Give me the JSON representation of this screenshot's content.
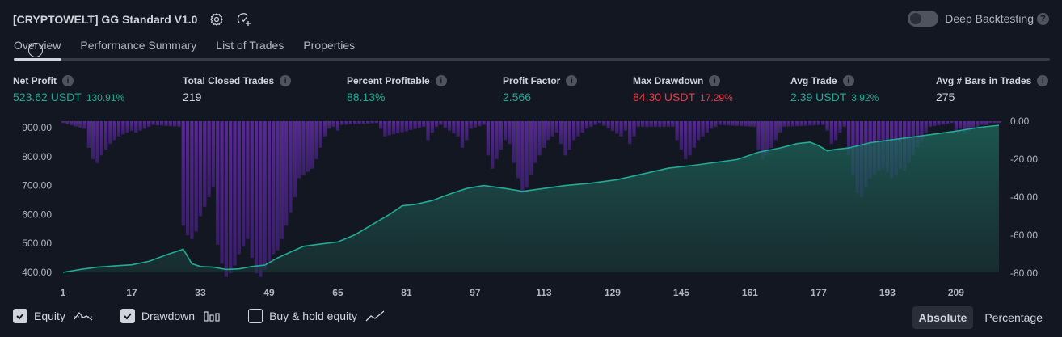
{
  "header": {
    "title": "[CRYPTOWELT] GG Standard V1.0",
    "settings_icon": "gear-icon",
    "source_icon": "add-alert-icon"
  },
  "deep_backtesting": {
    "label": "Deep Backtesting",
    "enabled": false,
    "help": "?"
  },
  "tabs": [
    {
      "label": "Overview",
      "active": true
    },
    {
      "label": "Performance Summary",
      "active": false
    },
    {
      "label": "List of Trades",
      "active": false
    },
    {
      "label": "Properties",
      "active": false
    }
  ],
  "metrics": [
    {
      "label": "Net Profit",
      "value": "523.62 USDT",
      "pct": "130.91%",
      "color": "green"
    },
    {
      "label": "Total Closed Trades",
      "value": "219",
      "pct": "",
      "color": "neutral"
    },
    {
      "label": "Percent Profitable",
      "value": "88.13%",
      "pct": "",
      "color": "green"
    },
    {
      "label": "Profit Factor",
      "value": "2.566",
      "pct": "",
      "color": "green"
    },
    {
      "label": "Max Drawdown",
      "value": "84.30 USDT",
      "pct": "17.29%",
      "color": "red"
    },
    {
      "label": "Avg Trade",
      "value": "2.39 USDT",
      "pct": "3.92%",
      "color": "green"
    },
    {
      "label": "Avg # Bars in Trades",
      "value": "275",
      "pct": "",
      "color": "neutral"
    }
  ],
  "info_glyph": "i",
  "chart_data": {
    "type": "area",
    "x_ticks": [
      "1",
      "17",
      "33",
      "49",
      "65",
      "81",
      "97",
      "113",
      "129",
      "145",
      "161",
      "177",
      "193",
      "209"
    ],
    "left_axis": {
      "ticks": [
        "900.00",
        "800.00",
        "700.00",
        "600.00",
        "500.00",
        "400.00"
      ],
      "range": [
        400,
        900
      ]
    },
    "right_axis": {
      "ticks": [
        "0.00",
        "-20.00",
        "-40.00",
        "-60.00",
        "-80.00"
      ],
      "range": [
        -80,
        0
      ]
    },
    "x_range": [
      1,
      219
    ],
    "equity": {
      "x": [
        1,
        5,
        9,
        13,
        17,
        21,
        25,
        29,
        31,
        33,
        36,
        39,
        42,
        45,
        48,
        51,
        54,
        57,
        61,
        65,
        69,
        73,
        77,
        80,
        83,
        87,
        91,
        95,
        99,
        104,
        108,
        113,
        118,
        124,
        130,
        136,
        142,
        148,
        153,
        158,
        163,
        168,
        172,
        175,
        177,
        179,
        181,
        184,
        189,
        194,
        199,
        204,
        209,
        214,
        219
      ],
      "values": [
        400,
        410,
        418,
        422,
        426,
        438,
        460,
        480,
        430,
        420,
        418,
        410,
        412,
        420,
        425,
        450,
        470,
        490,
        498,
        505,
        530,
        565,
        600,
        630,
        635,
        648,
        670,
        690,
        700,
        690,
        680,
        690,
        700,
        708,
        720,
        740,
        760,
        770,
        780,
        790,
        815,
        830,
        845,
        850,
        838,
        820,
        825,
        830,
        848,
        858,
        868,
        878,
        888,
        900,
        908
      ]
    },
    "drawdown": {
      "x": [
        1,
        6,
        7,
        8,
        9,
        10,
        11,
        12,
        13,
        14,
        15,
        16,
        17,
        18,
        19,
        20,
        21,
        22,
        28,
        29,
        30,
        31,
        32,
        33,
        34,
        35,
        36,
        37,
        38,
        39,
        40,
        41,
        42,
        43,
        44,
        45,
        46,
        47,
        48,
        49,
        50,
        51,
        52,
        53,
        54,
        55,
        56,
        59,
        60,
        61,
        62,
        63,
        64,
        65,
        66,
        74,
        75,
        76,
        85,
        86,
        87,
        88,
        89,
        93,
        94,
        95,
        96,
        99,
        100,
        101,
        102,
        103,
        104,
        105,
        106,
        107,
        108,
        109,
        110,
        111,
        112,
        113,
        114,
        115,
        116,
        117,
        118,
        119,
        120,
        121,
        122,
        123,
        124,
        125,
        126,
        131,
        132,
        133,
        134,
        135,
        143,
        144,
        145,
        146,
        147,
        148,
        149,
        150,
        151,
        152,
        153,
        154,
        162,
        163,
        164,
        165,
        166,
        167,
        168,
        169,
        178,
        179,
        180,
        181,
        182,
        183,
        184,
        185,
        186,
        187,
        188,
        189,
        190,
        191,
        192,
        193,
        194,
        195,
        196,
        197,
        198,
        199,
        200,
        201,
        202,
        203,
        208,
        209,
        210,
        211,
        212,
        213,
        214,
        215,
        216,
        217,
        218,
        219
      ],
      "values": [
        -1,
        -4,
        -14,
        -20,
        -22,
        -18,
        -15,
        -12,
        -10,
        -8,
        -7,
        -6,
        -5,
        -6,
        -5,
        -4,
        -3,
        -2,
        -3,
        -55,
        -60,
        -62,
        -58,
        -50,
        -45,
        -40,
        -35,
        -65,
        -75,
        -82,
        -80,
        -76,
        -70,
        -66,
        -62,
        -72,
        -80,
        -82,
        -78,
        -74,
        -70,
        -68,
        -62,
        -55,
        -48,
        -40,
        -30,
        -25,
        -20,
        -14,
        -8,
        -4,
        -3,
        -5,
        -2,
        -1,
        -4,
        -8,
        -3,
        -10,
        -6,
        -3,
        -2,
        -8,
        -14,
        -10,
        -4,
        -2,
        -18,
        -25,
        -20,
        -15,
        -10,
        -12,
        -22,
        -30,
        -38,
        -35,
        -28,
        -22,
        -18,
        -14,
        -10,
        -8,
        -6,
        -12,
        -18,
        -15,
        -10,
        -8,
        -6,
        -4,
        -3,
        -2,
        -1,
        -8,
        -5,
        -12,
        -8,
        -3,
        -3,
        -10,
        -15,
        -20,
        -18,
        -14,
        -10,
        -8,
        -6,
        -4,
        -3,
        -2,
        -3,
        -15,
        -20,
        -18,
        -14,
        -10,
        -6,
        -3,
        -2,
        -5,
        -12,
        -10,
        -6,
        -3,
        -18,
        -28,
        -38,
        -40,
        -35,
        -30,
        -28,
        -26,
        -25,
        -27,
        -30,
        -28,
        -25,
        -26,
        -22,
        -18,
        -14,
        -10,
        -6,
        -3,
        -1,
        -5,
        -4,
        -6,
        -5,
        -4,
        -3,
        -2,
        -2,
        -1,
        -1,
        -1
      ]
    },
    "colors": {
      "equity_line": "#22ab94",
      "drawdown": "#7e57c2"
    }
  },
  "legend": [
    {
      "label": "Equity",
      "checked": true,
      "icon": "equity-line-icon"
    },
    {
      "label": "Drawdown",
      "checked": true,
      "icon": "bar-chart-icon"
    },
    {
      "label": "Buy & hold equity",
      "checked": false,
      "icon": "trend-line-icon"
    }
  ],
  "mode": {
    "absolute": "Absolute",
    "percentage": "Percentage",
    "active": "absolute"
  }
}
